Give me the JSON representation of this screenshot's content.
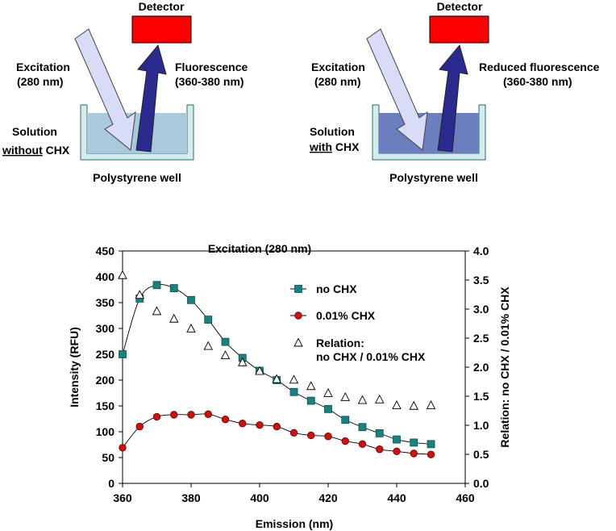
{
  "diagram": {
    "left": {
      "detector": "Detector",
      "excitation_line1": "Excitation",
      "excitation_line2": "(280 nm)",
      "emission_line1": "Fluorescence",
      "emission_line2": "(360-380 nm)",
      "solution_line1": "Solution",
      "solution_line2_underlined": "without",
      "solution_line2_rest": " CHX",
      "well": "Polystyrene well"
    },
    "right": {
      "detector": "Detector",
      "excitation_line1": "Excitation",
      "excitation_line2": "(280 nm)",
      "emission_line1": "Reduced fluorescence",
      "emission_line2": "(360-380 nm)",
      "solution_line1": "Solution",
      "solution_line2_underlined": "with",
      "solution_line2_rest": " CHX",
      "well": "Polystyrene well"
    },
    "colors": {
      "detector": "#ff0000",
      "excitation_arrow": "#d9dcf6",
      "emission_arrow": "#2b2b8f",
      "solution_light": "#a9c9dc",
      "solution_dark": "#6b7fbf",
      "well_border": "#7fb8b8"
    }
  },
  "chart_data": {
    "type": "line",
    "title": "Excitation (280 nm)",
    "xlabel": "Emission (nm)",
    "ylabel": "Intensity (RFU)",
    "y2label": "Relation: no CHX / 0.01% CHX",
    "xlim": [
      360,
      460
    ],
    "ylim": [
      0,
      450
    ],
    "y2lim": [
      0,
      4.0
    ],
    "xticks": [
      "360",
      "380",
      "400",
      "420",
      "440",
      "460"
    ],
    "yticks": [
      "0",
      "50",
      "100",
      "150",
      "200",
      "250",
      "300",
      "350",
      "400",
      "450"
    ],
    "y2ticks": [
      "0.0",
      "0.5",
      "1.0",
      "1.5",
      "2.0",
      "2.5",
      "3.0",
      "3.5",
      "4.0"
    ],
    "legend_position": "right",
    "grid": false,
    "x": [
      360,
      365,
      370,
      375,
      380,
      385,
      390,
      395,
      400,
      405,
      410,
      415,
      420,
      425,
      430,
      435,
      440,
      445,
      450
    ],
    "series": [
      {
        "name": "no CHX",
        "axis": "left",
        "marker": "square",
        "color": "#1a8080",
        "values": [
          250,
          358,
          384,
          378,
          355,
          317,
          274,
          243,
          218,
          200,
          177,
          160,
          144,
          123,
          109,
          97,
          85,
          79,
          76
        ]
      },
      {
        "name": "0.01% CHX",
        "axis": "left",
        "marker": "circle",
        "color": "#cc1111",
        "values": [
          69,
          110,
          129,
          133,
          133,
          134,
          124,
          116,
          113,
          110,
          98,
          93,
          91,
          82,
          76,
          66,
          62,
          58,
          56
        ]
      },
      {
        "name": "Relation:",
        "name_line2": "no CHX / 0.01% CHX",
        "axis": "right",
        "marker": "triangle",
        "color": "#000000",
        "values": [
          3.58,
          3.24,
          2.96,
          2.83,
          2.66,
          2.36,
          2.2,
          2.08,
          1.93,
          1.79,
          1.78,
          1.67,
          1.55,
          1.48,
          1.43,
          1.44,
          1.34,
          1.33,
          1.34
        ]
      }
    ]
  }
}
